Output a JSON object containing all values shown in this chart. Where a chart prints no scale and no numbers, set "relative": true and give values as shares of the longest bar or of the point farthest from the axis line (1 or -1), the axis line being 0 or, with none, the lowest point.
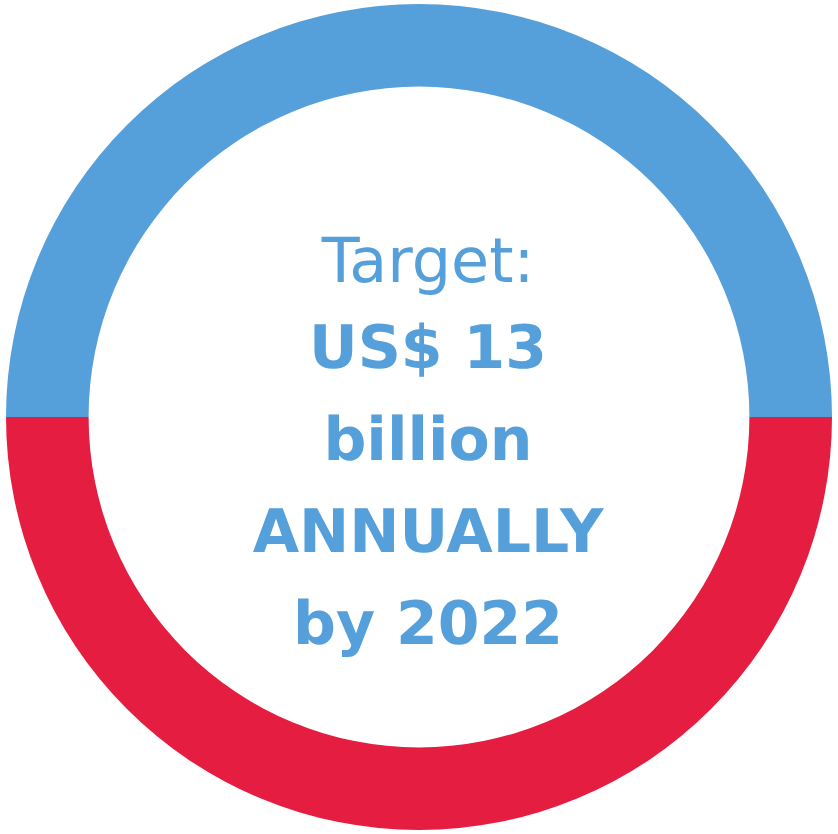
{
  "chart_data": {
    "type": "donut",
    "relative": true,
    "title": "Target:",
    "subtitle": "US$ 13 billion ANNUALLY by 2022",
    "categories": [
      null,
      null
    ],
    "values": [
      50,
      50
    ],
    "colors": [
      "#559fdb",
      "#e51d41"
    ],
    "legend": false
  }
}
